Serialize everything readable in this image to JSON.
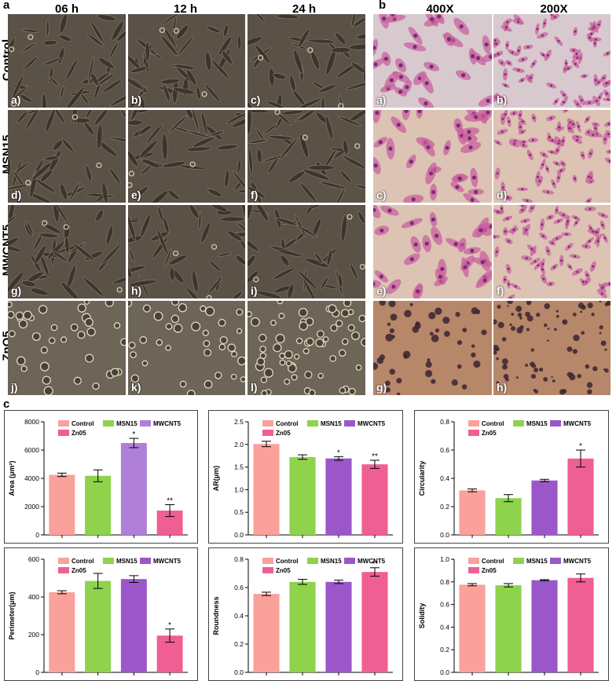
{
  "panel_a": {
    "label": "a",
    "columns": [
      "06 h",
      "12 h",
      "24 h"
    ],
    "rows": [
      "Control",
      "MSN15",
      "MWCNT5",
      "ZnO5"
    ],
    "tile_labels": [
      "a)",
      "b)",
      "c)",
      "d)",
      "e)",
      "f)",
      "g)",
      "h)",
      "i)",
      "j)",
      "k)",
      "l)"
    ]
  },
  "panel_b": {
    "label": "b",
    "columns": [
      "400X",
      "200X"
    ],
    "tile_labels": [
      "a)",
      "b)",
      "c)",
      "d)",
      "e)",
      "f)",
      "g)",
      "h)"
    ]
  },
  "panel_c": {
    "label": "c"
  },
  "colors": {
    "Control": "#f9a19a",
    "MSN15": "#8fd24c",
    "MWCNT5_area": "#b07fd8",
    "MWCNT5": "#9b57c9",
    "Zn05": "#ef5f94"
  },
  "chart_data": [
    {
      "type": "bar",
      "categories": [
        "Control",
        "MSN15",
        "MWCNT5",
        "Zn05"
      ],
      "values": [
        4250,
        4180,
        6500,
        1720
      ],
      "errors": [
        120,
        420,
        330,
        420
      ],
      "significance": [
        "",
        "",
        "*",
        "**"
      ],
      "xlabel": "",
      "ylabel": "Area (μm²)",
      "ylim": [
        0,
        8000
      ],
      "yticks": [
        0,
        2000,
        4000,
        6000,
        8000
      ],
      "legend": [
        "Control",
        "MSN15",
        "MWCNT5",
        "Zn05"
      ],
      "legend_placement": "top"
    },
    {
      "type": "bar",
      "categories": [
        "Control",
        "MSN15",
        "MWCNT5",
        "Zn05"
      ],
      "values": [
        2.01,
        1.72,
        1.69,
        1.56
      ],
      "errors": [
        0.06,
        0.05,
        0.04,
        0.09
      ],
      "significance": [
        "",
        "",
        "*",
        "**"
      ],
      "xlabel": "",
      "ylabel": "AR(μm)",
      "ylim": [
        0,
        2.5
      ],
      "yticks": [
        0.0,
        0.5,
        1.0,
        1.5,
        2.0,
        2.5
      ],
      "legend": [
        "Control",
        "MSN15",
        "MWCNT5",
        "Zn05"
      ],
      "legend_placement": "top"
    },
    {
      "type": "bar",
      "categories": [
        "Control",
        "MSN15",
        "MWCNT5",
        "Zn05"
      ],
      "values": [
        0.315,
        0.26,
        0.385,
        0.54
      ],
      "errors": [
        0.01,
        0.025,
        0.008,
        0.06
      ],
      "significance": [
        "",
        "",
        "",
        "*"
      ],
      "xlabel": "",
      "ylabel": "Circularity",
      "ylim": [
        0,
        0.8
      ],
      "yticks": [
        0.0,
        0.2,
        0.4,
        0.6,
        0.8
      ],
      "legend": [
        "Control",
        "MSN15",
        "MWCNT5",
        "Zn05"
      ],
      "legend_placement": "top"
    },
    {
      "type": "bar",
      "categories": [
        "Control",
        "MSN15",
        "MWCNT5",
        "Zn05"
      ],
      "values": [
        425,
        485,
        495,
        195
      ],
      "errors": [
        8,
        40,
        18,
        35
      ],
      "significance": [
        "",
        "",
        "",
        "*"
      ],
      "xlabel": "",
      "ylabel": "Perimeter(μm)",
      "ylim": [
        0,
        600
      ],
      "yticks": [
        0,
        200,
        400,
        600
      ],
      "legend": [
        "Control",
        "MSN15",
        "MWCNT5",
        "Zn05"
      ],
      "legend_placement": "top"
    },
    {
      "type": "bar",
      "categories": [
        "Control",
        "MSN15",
        "MWCNT5",
        "Zn05"
      ],
      "values": [
        0.555,
        0.64,
        0.64,
        0.71
      ],
      "errors": [
        0.012,
        0.018,
        0.012,
        0.03
      ],
      "significance": [
        "",
        "",
        "",
        "**"
      ],
      "xlabel": "",
      "ylabel": "Roundness",
      "ylim": [
        0,
        0.8
      ],
      "yticks": [
        0.0,
        0.2,
        0.4,
        0.6,
        0.8
      ],
      "legend": [
        "Control",
        "MSN15",
        "MWCNT5",
        "Zn05"
      ],
      "legend_placement": "top"
    },
    {
      "type": "bar",
      "categories": [
        "Control",
        "MSN15",
        "MWCNT5",
        "Zn05"
      ],
      "values": [
        0.775,
        0.77,
        0.815,
        0.835
      ],
      "errors": [
        0.01,
        0.015,
        0.005,
        0.035
      ],
      "significance": [
        "",
        "",
        "",
        ""
      ],
      "xlabel": "",
      "ylabel": "Solidity",
      "ylim": [
        0,
        1.0
      ],
      "yticks": [
        0.0,
        0.2,
        0.4,
        0.6,
        0.8,
        1.0
      ],
      "legend": [
        "Control",
        "MSN15",
        "MWCNT5",
        "Zn05"
      ],
      "legend_placement": "top"
    }
  ]
}
